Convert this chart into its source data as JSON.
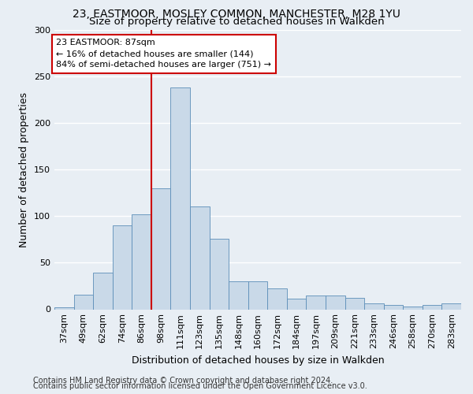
{
  "title_line1": "23, EASTMOOR, MOSLEY COMMON, MANCHESTER, M28 1YU",
  "title_line2": "Size of property relative to detached houses in Walkden",
  "xlabel": "Distribution of detached houses by size in Walkden",
  "ylabel": "Number of detached properties",
  "bar_labels": [
    "37sqm",
    "49sqm",
    "62sqm",
    "74sqm",
    "86sqm",
    "98sqm",
    "111sqm",
    "123sqm",
    "135sqm",
    "148sqm",
    "160sqm",
    "172sqm",
    "184sqm",
    "197sqm",
    "209sqm",
    "221sqm",
    "233sqm",
    "246sqm",
    "258sqm",
    "270sqm",
    "283sqm"
  ],
  "bar_values": [
    2,
    16,
    39,
    90,
    102,
    130,
    238,
    110,
    76,
    30,
    30,
    22,
    11,
    15,
    15,
    12,
    6,
    5,
    3,
    5,
    6
  ],
  "bar_color": "#c9d9e8",
  "bar_edge_color": "#5b8db8",
  "vline_x": 4.5,
  "vline_color": "#cc0000",
  "annotation_text": "23 EASTMOOR: 87sqm\n← 16% of detached houses are smaller (144)\n84% of semi-detached houses are larger (751) →",
  "annotation_box_color": "#ffffff",
  "annotation_box_edge": "#cc0000",
  "ylim": [
    0,
    300
  ],
  "yticks": [
    0,
    50,
    100,
    150,
    200,
    250,
    300
  ],
  "footer_line1": "Contains HM Land Registry data © Crown copyright and database right 2024.",
  "footer_line2": "Contains public sector information licensed under the Open Government Licence v3.0.",
  "bg_color": "#e8eef4",
  "grid_color": "#ffffff",
  "title_fontsize": 10,
  "subtitle_fontsize": 9.5,
  "axis_label_fontsize": 9,
  "tick_fontsize": 8,
  "footer_fontsize": 7,
  "annotation_fontsize": 8
}
